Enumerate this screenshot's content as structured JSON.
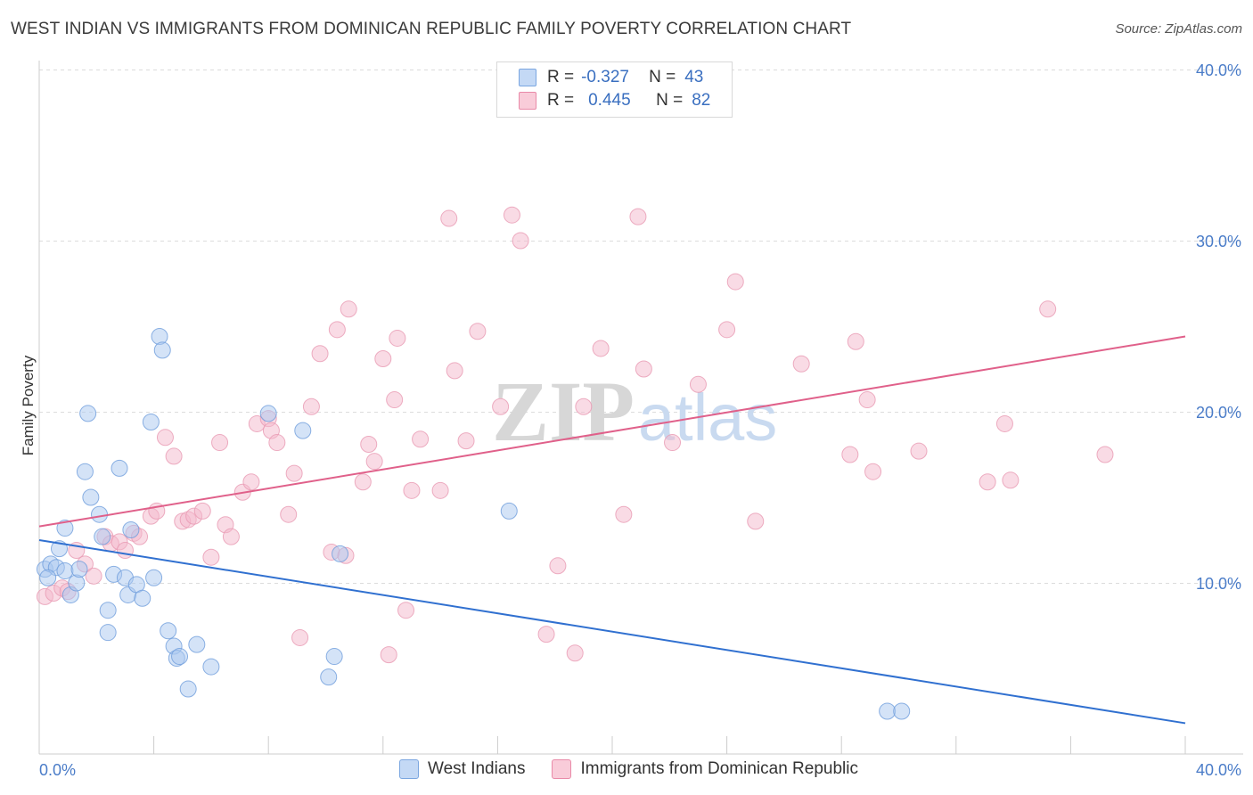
{
  "title": "WEST INDIAN VS IMMIGRANTS FROM DOMINICAN REPUBLIC FAMILY POVERTY CORRELATION CHART",
  "source": "Source: ZipAtlas.com",
  "watermark": {
    "zip": "ZIP",
    "atlas": "atlas"
  },
  "legend": {
    "r_label": "R =",
    "n_label": "N =",
    "west_indians": {
      "r": "-0.327",
      "n": "43"
    },
    "dominican": {
      "r": "0.445",
      "n": "82"
    }
  },
  "bottom_legend": {
    "west_indians": "West Indians",
    "dominican": "Immigrants from Dominican Republic"
  },
  "colors": {
    "blue": "#a9c7ef",
    "blue_line": "#3070d0",
    "pink": "#f4b8cb",
    "pink_line": "#e0608a",
    "tick": "#4a7cc8"
  },
  "chart_data": {
    "type": "scatter",
    "title": "WEST INDIAN VS IMMIGRANTS FROM DOMINICAN REPUBLIC FAMILY POVERTY CORRELATION CHART",
    "xlabel": "",
    "ylabel": "Family Poverty",
    "xlim": [
      0,
      40
    ],
    "ylim": [
      0,
      40
    ],
    "x_tick_labels": [
      "0.0%",
      "40.0%"
    ],
    "y_tick_labels": [
      "10.0%",
      "20.0%",
      "30.0%",
      "40.0%"
    ],
    "y_ticks": [
      10,
      20,
      30,
      40
    ],
    "grid": true,
    "series": [
      {
        "name": "West Indians",
        "r": -0.327,
        "n": 43,
        "trend": [
          [
            0,
            12.5
          ],
          [
            40,
            1.8
          ]
        ],
        "points": [
          [
            0.2,
            10.8
          ],
          [
            0.4,
            11.1
          ],
          [
            0.6,
            10.9
          ],
          [
            0.7,
            12.0
          ],
          [
            0.9,
            10.7
          ],
          [
            0.9,
            13.2
          ],
          [
            1.1,
            9.3
          ],
          [
            1.3,
            10.0
          ],
          [
            1.4,
            10.8
          ],
          [
            1.6,
            16.5
          ],
          [
            1.7,
            19.9
          ],
          [
            1.8,
            15.0
          ],
          [
            2.1,
            14.0
          ],
          [
            2.2,
            12.7
          ],
          [
            2.4,
            7.1
          ],
          [
            2.4,
            8.4
          ],
          [
            2.6,
            10.5
          ],
          [
            2.8,
            16.7
          ],
          [
            3.0,
            10.3
          ],
          [
            3.1,
            9.3
          ],
          [
            3.2,
            13.1
          ],
          [
            3.4,
            9.9
          ],
          [
            3.6,
            9.1
          ],
          [
            3.9,
            19.4
          ],
          [
            4.0,
            10.3
          ],
          [
            4.2,
            24.4
          ],
          [
            4.3,
            23.6
          ],
          [
            4.5,
            7.2
          ],
          [
            4.7,
            6.3
          ],
          [
            4.8,
            5.6
          ],
          [
            4.9,
            5.7
          ],
          [
            5.2,
            3.8
          ],
          [
            5.5,
            6.4
          ],
          [
            6.0,
            5.1
          ],
          [
            8.0,
            19.9
          ],
          [
            9.2,
            18.9
          ],
          [
            10.1,
            4.5
          ],
          [
            10.3,
            5.7
          ],
          [
            10.5,
            11.7
          ],
          [
            16.4,
            14.2
          ],
          [
            29.6,
            2.5
          ],
          [
            30.1,
            2.5
          ],
          [
            0.3,
            10.3
          ]
        ]
      },
      {
        "name": "Immigrants from Dominican Republic",
        "r": 0.445,
        "n": 82,
        "trend": [
          [
            0,
            13.3
          ],
          [
            40,
            24.4
          ]
        ],
        "points": [
          [
            0.2,
            9.2
          ],
          [
            0.5,
            9.4
          ],
          [
            0.8,
            9.7
          ],
          [
            1.0,
            9.5
          ],
          [
            1.3,
            11.9
          ],
          [
            1.6,
            11.1
          ],
          [
            1.9,
            10.4
          ],
          [
            2.3,
            12.7
          ],
          [
            2.5,
            12.3
          ],
          [
            2.8,
            12.4
          ],
          [
            3.0,
            11.9
          ],
          [
            3.3,
            12.9
          ],
          [
            3.5,
            12.7
          ],
          [
            3.9,
            13.9
          ],
          [
            4.1,
            14.2
          ],
          [
            4.4,
            18.5
          ],
          [
            4.7,
            17.4
          ],
          [
            5.0,
            13.6
          ],
          [
            5.2,
            13.7
          ],
          [
            5.4,
            13.9
          ],
          [
            5.7,
            14.2
          ],
          [
            6.0,
            11.5
          ],
          [
            6.3,
            18.2
          ],
          [
            6.5,
            13.4
          ],
          [
            6.7,
            12.7
          ],
          [
            7.1,
            15.3
          ],
          [
            7.4,
            15.9
          ],
          [
            7.6,
            19.3
          ],
          [
            8.0,
            19.6
          ],
          [
            8.1,
            18.9
          ],
          [
            8.3,
            18.2
          ],
          [
            8.7,
            14.0
          ],
          [
            8.9,
            16.4
          ],
          [
            9.1,
            6.8
          ],
          [
            9.5,
            20.3
          ],
          [
            9.8,
            23.4
          ],
          [
            10.2,
            11.8
          ],
          [
            10.4,
            24.8
          ],
          [
            10.7,
            11.6
          ],
          [
            10.8,
            26.0
          ],
          [
            11.3,
            15.9
          ],
          [
            11.5,
            18.1
          ],
          [
            11.7,
            17.1
          ],
          [
            12.0,
            23.1
          ],
          [
            12.2,
            5.8
          ],
          [
            12.4,
            20.7
          ],
          [
            12.5,
            24.3
          ],
          [
            12.8,
            8.4
          ],
          [
            13.0,
            15.4
          ],
          [
            13.3,
            18.4
          ],
          [
            14.0,
            15.4
          ],
          [
            14.3,
            31.3
          ],
          [
            14.5,
            22.4
          ],
          [
            14.9,
            18.3
          ],
          [
            15.3,
            24.7
          ],
          [
            16.1,
            20.3
          ],
          [
            16.5,
            31.5
          ],
          [
            16.8,
            30.0
          ],
          [
            17.7,
            7.0
          ],
          [
            18.1,
            11.0
          ],
          [
            18.7,
            5.9
          ],
          [
            19.0,
            20.3
          ],
          [
            19.6,
            23.7
          ],
          [
            20.4,
            14.0
          ],
          [
            20.9,
            31.4
          ],
          [
            21.1,
            22.5
          ],
          [
            22.1,
            18.2
          ],
          [
            23.0,
            21.6
          ],
          [
            24.0,
            24.8
          ],
          [
            24.3,
            27.6
          ],
          [
            25.0,
            13.6
          ],
          [
            26.6,
            22.8
          ],
          [
            28.3,
            17.5
          ],
          [
            28.5,
            24.1
          ],
          [
            28.9,
            20.7
          ],
          [
            29.1,
            16.5
          ],
          [
            30.7,
            17.7
          ],
          [
            33.1,
            15.9
          ],
          [
            33.7,
            19.3
          ],
          [
            33.9,
            16.0
          ],
          [
            35.2,
            26.0
          ],
          [
            37.2,
            17.5
          ]
        ]
      }
    ]
  }
}
